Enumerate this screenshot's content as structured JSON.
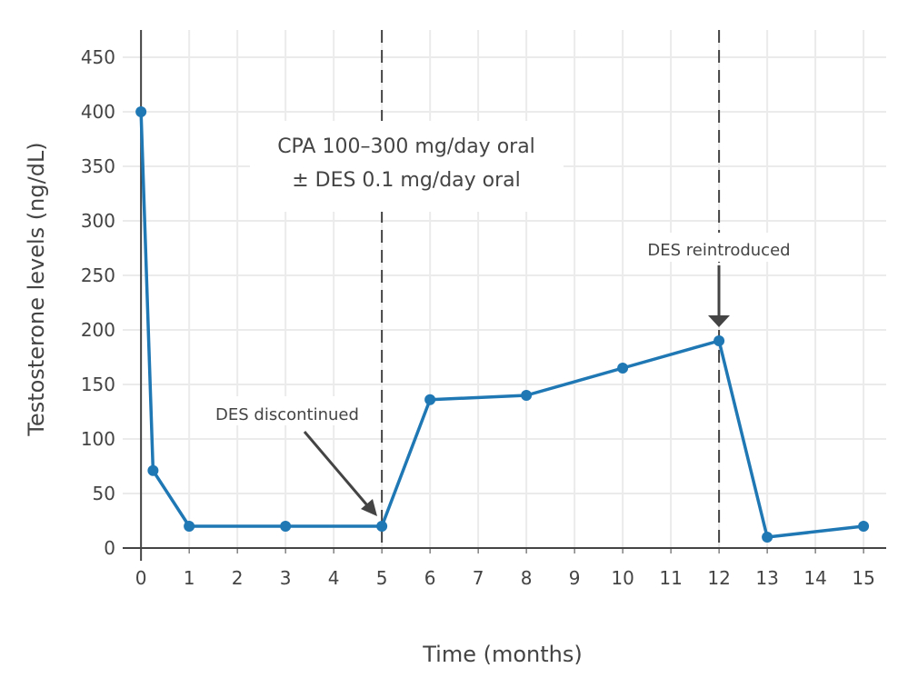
{
  "chart_data": {
    "type": "line",
    "title": "",
    "xlabel": "Time (months)",
    "ylabel": "Testosterone levels (ng/dL)",
    "xlim": [
      -0.38,
      15.47
    ],
    "ylim": [
      0,
      475
    ],
    "xticks": [
      0,
      1,
      2,
      3,
      4,
      5,
      6,
      7,
      8,
      9,
      10,
      11,
      12,
      13,
      14,
      15
    ],
    "yticks": [
      0,
      50,
      100,
      150,
      200,
      250,
      300,
      350,
      400,
      450
    ],
    "grid": true,
    "series": [
      {
        "name": "Testosterone",
        "color": "#1f77b4",
        "x": [
          0,
          0.25,
          1,
          3,
          5,
          6,
          8,
          10,
          12,
          13,
          15
        ],
        "y": [
          400,
          71,
          20,
          20,
          20,
          136,
          140,
          165,
          190,
          10,
          20
        ]
      }
    ],
    "vlines": [
      5,
      12
    ],
    "annotations": [
      {
        "id": "regimen",
        "lines": [
          "CPA 100–300 mg/day oral",
          "± DES 0.1 mg/day oral"
        ]
      },
      {
        "id": "discontinued",
        "text": "DES discontinued",
        "x": 5,
        "y": 20
      },
      {
        "id": "reintroduced",
        "text": "DES reintroduced",
        "x": 12,
        "y": 190
      }
    ]
  }
}
